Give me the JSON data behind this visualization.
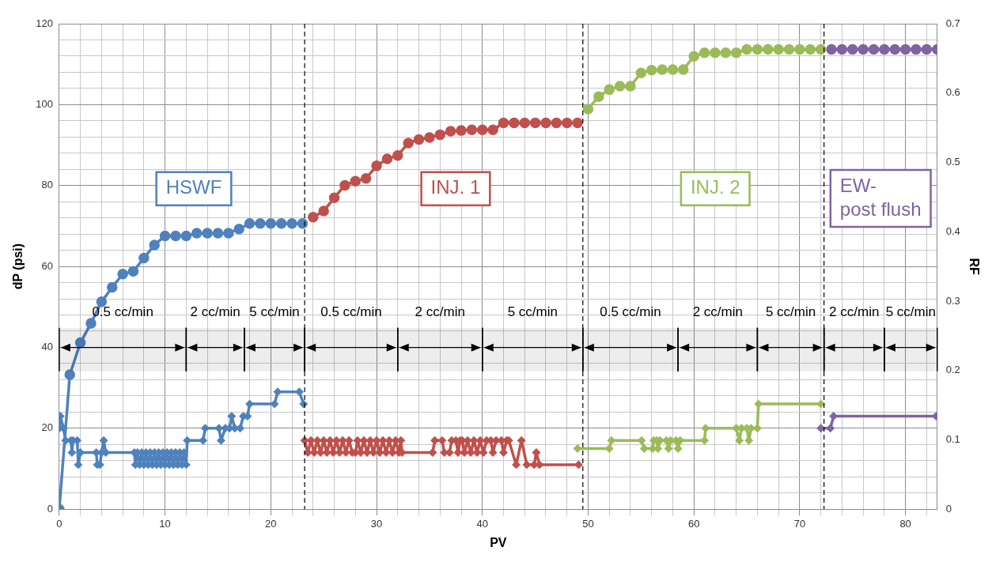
{
  "chart_data": {
    "type": "line",
    "xlabel": "PV",
    "ylabel": "dP (psi)",
    "y2label": "RF",
    "xlim": [
      0,
      83
    ],
    "xticks": [
      0,
      {
        "value": 2,
        "label": null
      },
      {
        "value": 4,
        "label": null
      },
      {
        "value": 6,
        "label": null
      },
      {
        "value": 8,
        "label": null
      },
      10,
      {
        "value": 12,
        "label": null
      },
      {
        "value": 14,
        "label": null
      },
      {
        "value": 16,
        "label": null
      },
      {
        "value": 18,
        "label": null
      },
      20,
      {
        "value": 22,
        "label": null
      },
      {
        "value": 24,
        "label": null
      },
      {
        "value": 26,
        "label": null
      },
      {
        "value": 28,
        "label": null
      },
      30,
      {
        "value": 32,
        "label": null
      },
      {
        "value": 34,
        "label": null
      },
      {
        "value": 36,
        "label": null
      },
      {
        "value": 38,
        "label": null
      },
      40,
      {
        "value": 42,
        "label": null
      },
      {
        "value": 44,
        "label": null
      },
      {
        "value": 46,
        "label": null
      },
      {
        "value": 48,
        "label": null
      },
      50,
      {
        "value": 52,
        "label": null
      },
      {
        "value": 54,
        "label": null
      },
      {
        "value": 56,
        "label": null
      },
      {
        "value": 58,
        "label": null
      },
      60,
      {
        "value": 62,
        "label": null
      },
      {
        "value": 64,
        "label": null
      },
      {
        "value": 66,
        "label": null
      },
      {
        "value": 68,
        "label": null
      },
      70,
      {
        "value": 72,
        "label": null
      },
      {
        "value": 74,
        "label": null
      },
      {
        "value": 76,
        "label": null
      },
      {
        "value": 78,
        "label": null
      },
      80,
      {
        "value": 82,
        "label": null
      }
    ],
    "ylim": [
      0,
      120
    ],
    "yticks": [
      0,
      {
        "value": 4,
        "label": null
      },
      {
        "value": 8,
        "label": null
      },
      {
        "value": 12,
        "label": null
      },
      {
        "value": 16,
        "label": null
      },
      20,
      {
        "value": 24,
        "label": null
      },
      {
        "value": 28,
        "label": null
      },
      {
        "value": 32,
        "label": null
      },
      {
        "value": 36,
        "label": null
      },
      40,
      {
        "value": 44,
        "label": null
      },
      {
        "value": 48,
        "label": null
      },
      {
        "value": 52,
        "label": null
      },
      {
        "value": 56,
        "label": null
      },
      60,
      {
        "value": 64,
        "label": null
      },
      {
        "value": 68,
        "label": null
      },
      {
        "value": 72,
        "label": null
      },
      {
        "value": 76,
        "label": null
      },
      80,
      {
        "value": 84,
        "label": null
      },
      {
        "value": 88,
        "label": null
      },
      {
        "value": 92,
        "label": null
      },
      {
        "value": 96,
        "label": null
      },
      100,
      {
        "value": 104,
        "label": null
      },
      {
        "value": 108,
        "label": null
      },
      {
        "value": 112,
        "label": null
      },
      {
        "value": 116,
        "label": null
      },
      120
    ],
    "y2lim": [
      0,
      0.7
    ],
    "y2ticks": [
      0,
      0.1,
      0.2,
      0.3,
      0.4,
      0.5,
      0.6,
      0.7
    ],
    "grid": true,
    "legend": false,
    "marker": "circle",
    "line_style": "solid",
    "series": [
      {
        "color": "#4f81bd",
        "axis": "y2",
        "x": [
          0,
          1,
          2,
          3,
          4,
          5,
          6,
          7,
          8,
          9,
          10,
          11,
          12,
          13,
          14,
          15,
          16,
          17,
          18,
          19,
          20,
          21,
          22,
          23
        ],
        "values": [
          0,
          0.194,
          0.24,
          0.268,
          0.299,
          0.32,
          0.339,
          0.343,
          0.362,
          0.381,
          0.394,
          0.394,
          0.394,
          0.398,
          0.398,
          0.398,
          0.398,
          0.404,
          0.412,
          0.412,
          0.412,
          0.412,
          0.412,
          0.412
        ]
      },
      {
        "color": "#c0504d",
        "axis": "y2",
        "x": [
          24,
          25,
          26,
          27,
          28,
          29,
          30,
          31,
          32,
          33,
          34,
          35,
          36,
          37,
          38,
          39,
          40,
          41,
          42,
          43,
          44,
          45,
          46,
          47,
          48,
          49
        ],
        "values": [
          0.421,
          0.43,
          0.449,
          0.467,
          0.473,
          0.477,
          0.495,
          0.505,
          0.51,
          0.528,
          0.533,
          0.536,
          0.54,
          0.545,
          0.546,
          0.547,
          0.547,
          0.547,
          0.557,
          0.557,
          0.557,
          0.557,
          0.557,
          0.557,
          0.557,
          0.557
        ]
      },
      {
        "color": "#9bbb59",
        "axis": "y2",
        "x": [
          50,
          51,
          52,
          53,
          54,
          55,
          56,
          57,
          58,
          59,
          60,
          61,
          62,
          63,
          64,
          65,
          66,
          67,
          68,
          69,
          70,
          71,
          72
        ],
        "values": [
          0.577,
          0.595,
          0.605,
          0.61,
          0.61,
          0.629,
          0.633,
          0.634,
          0.634,
          0.634,
          0.653,
          0.658,
          0.658,
          0.658,
          0.658,
          0.663,
          0.663,
          0.663,
          0.663,
          0.663,
          0.663,
          0.663,
          0.663
        ]
      },
      {
        "color": "#8064a2",
        "axis": "y2",
        "x": [
          73,
          74,
          75,
          76,
          77,
          78,
          79,
          80,
          81,
          82,
          83
        ],
        "values": [
          0.663,
          0.663,
          0.663,
          0.663,
          0.663,
          0.663,
          0.663,
          0.663,
          0.663,
          0.663,
          0.663
        ]
      },
      {
        "color": "#4f81bd",
        "marker": "diamond",
        "x": [
          0,
          0.1,
          0.4,
          0.6,
          1.1,
          1.2,
          1.3,
          1.7,
          1.8,
          2.0,
          3.5,
          3.6,
          3.85,
          4.0,
          4.2,
          4.4,
          7.1,
          7.2,
          7.4,
          7.6,
          7.8,
          8.0,
          8.2,
          8.4,
          8.6,
          8.8,
          9.0,
          9.2,
          9.4,
          9.6,
          9.8,
          10.0,
          10.2,
          10.4,
          10.6,
          10.8,
          11.0,
          11.2,
          11.4,
          11.6,
          11.8,
          12.0,
          12.1,
          13.6,
          13.8,
          15.1,
          15.3,
          15.7,
          16.1,
          16.3,
          16.6,
          17.1,
          17.4,
          17.8,
          18.0,
          20.35,
          20.65,
          22.7,
          23.1
        ],
        "values": [
          20,
          23,
          20,
          17,
          17,
          14,
          17,
          17,
          11,
          14,
          14,
          11,
          11,
          14,
          17,
          14,
          14,
          11,
          14,
          11,
          14,
          11,
          14,
          11,
          14,
          11,
          14,
          11,
          14,
          11,
          14,
          11,
          14,
          11,
          14,
          11,
          14,
          11,
          14,
          11,
          14,
          11,
          17,
          17,
          20,
          20,
          17,
          20,
          20,
          23,
          20,
          20,
          23,
          23,
          26,
          26,
          29,
          29,
          26
        ]
      },
      {
        "color": "#c0504d",
        "marker": "diamond",
        "x": [
          23.2,
          23.5,
          23.8,
          24.1,
          24.4,
          24.7,
          25.0,
          25.3,
          25.6,
          25.9,
          26.2,
          26.5,
          26.8,
          27.1,
          27.4,
          27.7,
          28.0,
          28.2,
          28.5,
          28.8,
          29.1,
          29.4,
          29.7,
          30.0,
          30.3,
          30.6,
          30.9,
          31.2,
          31.5,
          31.8,
          32.1,
          32.3,
          32.4,
          35.3,
          35.5,
          36.2,
          36.4,
          36.9,
          37.1,
          37.5,
          37.7,
          37.9,
          38.1,
          38.3,
          38.6,
          38.9,
          39.2,
          39.5,
          39.8,
          40.1,
          40.4,
          40.8,
          41.0,
          41.3,
          41.8,
          42.0,
          42.3,
          42.5,
          43.2,
          43.7,
          44.2,
          44.9,
          45.1,
          45.4,
          49.1
        ],
        "values": [
          17,
          14,
          17,
          14,
          17,
          14,
          17,
          14,
          17,
          14,
          17,
          14,
          17,
          14,
          17,
          14,
          14,
          17,
          14,
          17,
          14,
          17,
          14,
          17,
          14,
          17,
          14,
          17,
          14,
          17,
          14,
          17,
          14,
          14,
          17,
          17,
          14,
          14,
          17,
          17,
          14,
          17,
          17,
          14,
          17,
          14,
          17,
          14,
          17,
          14,
          17,
          17,
          14,
          17,
          17,
          14,
          17,
          17,
          11,
          17,
          11,
          11,
          14,
          11,
          11
        ]
      },
      {
        "color": "#9bbb59",
        "marker": "diamond",
        "x": [
          49.0,
          52.0,
          52.2,
          55.05,
          55.3,
          56.1,
          56.2,
          56.5,
          56.6,
          56.8,
          57.4,
          57.6,
          57.8,
          58.3,
          58.5,
          58.7,
          61.0,
          61.1,
          64.0,
          64.3,
          64.5,
          65.0,
          65.2,
          65.4,
          66.0,
          66.1,
          72.0
        ],
        "values": [
          15,
          15,
          17,
          17,
          15,
          15,
          17,
          17,
          15,
          17,
          17,
          15,
          17,
          17,
          15,
          17,
          17,
          20,
          20,
          17,
          20,
          20,
          17,
          20,
          20,
          26,
          26
        ]
      },
      {
        "color": "#8064a2",
        "marker": "diamond",
        "x": [
          72.0,
          72.9,
          73.2,
          82.9
        ],
        "values": [
          20,
          20,
          23,
          23
        ]
      }
    ],
    "ref_lines": [
      {
        "axis": "x",
        "value": 23.2,
        "line_style": "dashed",
        "color": "#000000"
      },
      {
        "axis": "x",
        "value": 49.5,
        "line_style": "dashed",
        "color": "#000000"
      },
      {
        "axis": "x",
        "value": 72.3,
        "line_style": "dashed",
        "color": "#000000"
      }
    ],
    "bands": [
      {
        "axis": "x",
        "from": 0,
        "to": 12,
        "label": "0.5 cc/min"
      },
      {
        "axis": "x",
        "from": 12,
        "to": 17.5,
        "label": "2 cc/min"
      },
      {
        "axis": "x",
        "from": 17.5,
        "to": 23.2,
        "label": "5 cc/min"
      },
      {
        "axis": "x",
        "from": 23.2,
        "to": 32,
        "label": "0.5 cc/min"
      },
      {
        "axis": "x",
        "from": 32,
        "to": 40,
        "label": "2 cc/min"
      },
      {
        "axis": "x",
        "from": 40,
        "to": 49.5,
        "label": "5 cc/min"
      },
      {
        "axis": "x",
        "from": 49.5,
        "to": 58.5,
        "label": "0.5 cc/min"
      },
      {
        "axis": "x",
        "from": 58.5,
        "to": 66,
        "label": "2 cc/min"
      },
      {
        "axis": "x",
        "from": 66,
        "to": 72.3,
        "label": "5 cc/min"
      },
      {
        "axis": "x",
        "from": 72.3,
        "to": 78,
        "label": "2 cc/min"
      },
      {
        "axis": "x",
        "from": 78,
        "to": 83,
        "label": "5 cc/min"
      }
    ],
    "annotations": [
      "HSWF",
      "INJ. 1",
      "INJ. 2",
      "EW-\npost flush"
    ]
  }
}
